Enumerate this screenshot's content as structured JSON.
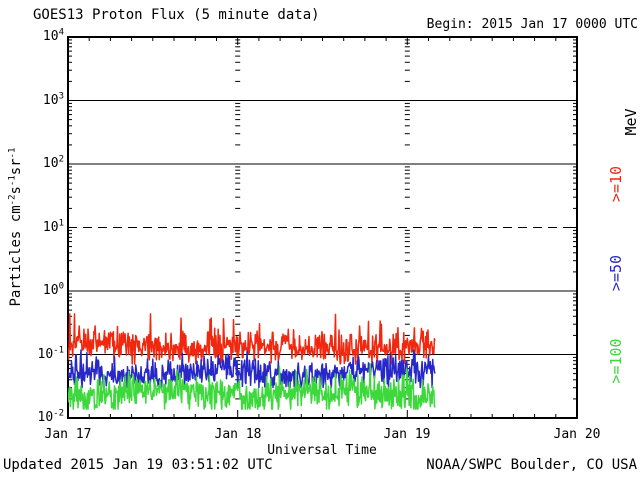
{
  "chart_data": {
    "type": "line",
    "title": "GOES13 Proton Flux (5 minute data)",
    "begin_label": "Begin: 2015 Jan 17 0000 UTC",
    "xlabel": "Universal Time",
    "ylabel": "Particles cm-2 s-1 sr-1",
    "ylabel_segments": [
      {
        "t": "Particles cm"
      },
      {
        "t": "-2",
        "sup": true
      },
      {
        "t": "s"
      },
      {
        "t": "-1",
        "sup": true
      },
      {
        "t": "sr"
      },
      {
        "t": "-1",
        "sup": true
      }
    ],
    "yscale": "log",
    "ylim": [
      0.01,
      10000
    ],
    "ytick_exponents": [
      4,
      3,
      2,
      1,
      0,
      -1,
      -2
    ],
    "xticks": [
      "Jan 17",
      "Jan 18",
      "Jan 19",
      "Jan 20"
    ],
    "x_span_days": 3,
    "time_minor_tick_hours": 3,
    "grid": {
      "solid_at": [
        1000,
        100,
        1,
        0.1
      ],
      "dashed_at": [
        10
      ],
      "day_dash_columns": [
        "Jan 18",
        "Jan 19"
      ]
    },
    "legend_unit": "MeV",
    "series": [
      {
        "name": ">=10 MeV",
        "legend": ">=10",
        "threshold_mev": 10,
        "color": "#f02810",
        "cadence_minutes": 5,
        "start_day": 0,
        "end_day": 2.163,
        "typical_flux": 0.13,
        "flux_band": [
          0.08,
          0.25
        ],
        "flux_peak": 0.45,
        "noise": {
          "log10_median": -0.88,
          "log10_sigma": 0.12,
          "spike_prob": 0.06,
          "spike_amp": 0.45,
          "log10_min": -1.15,
          "log10_max": -0.36,
          "lf_wobble": 0.05
        }
      },
      {
        "name": ">=50 MeV",
        "legend": ">=50",
        "threshold_mev": 50,
        "color": "#2828c8",
        "cadence_minutes": 5,
        "start_day": 0,
        "end_day": 2.163,
        "typical_flux": 0.055,
        "flux_band": [
          0.03,
          0.09
        ],
        "flux_peak": 0.12,
        "noise": {
          "log10_median": -1.3,
          "log10_sigma": 0.12,
          "spike_prob": 0.05,
          "spike_amp": 0.32,
          "log10_min": -1.52,
          "log10_max": -0.93,
          "lf_wobble": 0.05
        }
      },
      {
        "name": ">=100 MeV",
        "legend": ">=100",
        "threshold_mev": 100,
        "color": "#3cd83c",
        "cadence_minutes": 5,
        "start_day": 0,
        "end_day": 2.163,
        "typical_flux": 0.025,
        "flux_band": [
          0.015,
          0.05
        ],
        "flux_peak": 0.07,
        "noise": {
          "log10_median": -1.6,
          "log10_sigma": 0.14,
          "spike_prob": 0.05,
          "spike_amp": 0.35,
          "log10_min": -1.86,
          "log10_max": -1.15,
          "lf_wobble": 0.05
        }
      }
    ]
  },
  "footer": {
    "updated": "Updated 2015 Jan 19 03:51:02 UTC",
    "source": "NOAA/SWPC Boulder, CO USA"
  },
  "colors": {
    "frame": "#000000",
    "background": "#ffffff"
  }
}
